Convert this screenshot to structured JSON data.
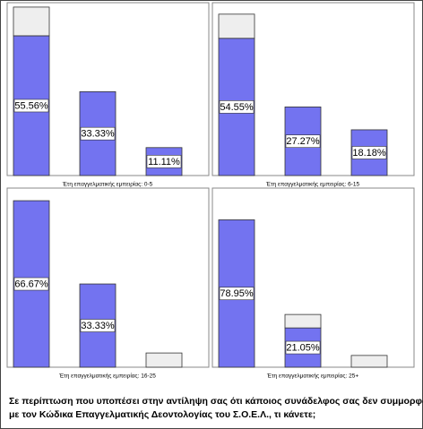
{
  "chart_data": [
    {
      "type": "bar",
      "x_label": "Έτη επαγγελματικής εμπειρίας: 0-5",
      "categories": [
        null,
        null,
        null
      ],
      "ylim": [
        0,
        68
      ],
      "series": [
        {
          "color": "#7373f0",
          "values": [
            55.56,
            33.33,
            11.11
          ],
          "value_labels": [
            "55.56%",
            "33.33%",
            "11.11%"
          ]
        },
        {
          "color": "#eeeeee",
          "values": [
            11.4,
            0,
            0
          ]
        }
      ]
    },
    {
      "type": "bar",
      "x_label": "Έτη επαγγελματικής εμπειρίας: 6-15",
      "categories": [
        null,
        null,
        null
      ],
      "ylim": [
        0,
        68
      ],
      "series": [
        {
          "color": "#7373f0",
          "values": [
            54.55,
            27.27,
            18.18
          ],
          "value_labels": [
            "54.55%",
            "27.27%",
            "18.18%"
          ]
        },
        {
          "color": "#eeeeee",
          "values": [
            9.6,
            0,
            0
          ]
        }
      ]
    },
    {
      "type": "bar",
      "x_label": "Έτη επαγγελματικής εμπειρίας: 16-25",
      "categories": [
        null,
        null,
        null
      ],
      "ylim": [
        0,
        71
      ],
      "series": [
        {
          "color": "#7373f0",
          "values": [
            66.67,
            33.33,
            0
          ],
          "value_labels": [
            "66.67%",
            "33.33%",
            null
          ]
        },
        {
          "color": "#eeeeee",
          "values": [
            0,
            0,
            5.7
          ]
        }
      ]
    },
    {
      "type": "bar",
      "x_label": "Έτη επαγγελματικής εμπειρίας: 25+",
      "categories": [
        null,
        null,
        null
      ],
      "ylim": [
        0,
        95
      ],
      "series": [
        {
          "color": "#7373f0",
          "values": [
            78.95,
            21.05,
            0
          ],
          "value_labels": [
            "78.95%",
            "21.05%",
            null
          ]
        },
        {
          "color": "#eeeeee",
          "values": [
            0,
            7.2,
            6.3
          ]
        }
      ]
    }
  ],
  "caption": [
    "Σε περίπτωση που υποπέσει στην αντίληψη σας ότι κάποιος συνάδελφος σας δεν συμμορφώνεται",
    "με τον Κώδικα Επαγγελματικής Δεοντολογίας του Σ.Ο.Ε.Λ., τι κάνετε;"
  ]
}
